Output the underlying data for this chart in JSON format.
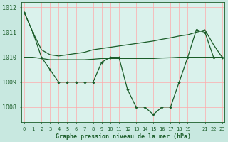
{
  "title": "Graphe pression niveau de la mer (hPa)",
  "bg_color": "#c8e8e0",
  "plot_bg": "#daf2ec",
  "line_color": "#1a5c28",
  "ylim": [
    1007.4,
    1012.2
  ],
  "yticks": [
    1008,
    1009,
    1010,
    1011,
    1012
  ],
  "xlim": [
    -0.3,
    23.3
  ],
  "xticks": [
    0,
    1,
    2,
    3,
    4,
    5,
    6,
    7,
    8,
    9,
    10,
    11,
    12,
    13,
    14,
    15,
    16,
    17,
    18,
    19,
    20,
    21,
    22,
    23
  ],
  "xtick_labels": [
    "0",
    "1",
    "2",
    "3",
    "4",
    "5",
    "6",
    "7",
    "8",
    "9",
    "10",
    "11",
    "12",
    "13",
    "14",
    "15",
    "16",
    "17",
    "18",
    "19",
    "",
    "21",
    "22",
    "23"
  ],
  "s1_x": [
    0,
    1,
    2,
    3,
    4,
    5,
    6,
    7,
    8,
    9,
    10,
    11,
    12,
    13,
    14,
    15,
    16,
    17,
    18,
    19,
    20,
    21,
    22,
    23
  ],
  "s1_y": [
    1011.8,
    1011.0,
    1010.0,
    1009.5,
    1009.0,
    1009.0,
    1009.0,
    1009.0,
    1009.0,
    1009.8,
    1010.0,
    1010.0,
    1008.7,
    1008.0,
    1008.0,
    1007.7,
    1008.0,
    1008.0,
    1009.0,
    1010.0,
    1011.1,
    1011.0,
    1010.0,
    1010.0
  ],
  "s2_x": [
    0,
    1,
    2,
    3,
    4,
    5,
    6,
    7,
    8,
    9,
    10,
    11,
    12,
    13,
    14,
    15,
    16,
    17,
    18,
    19,
    20,
    21,
    22,
    23
  ],
  "s2_y": [
    1010.0,
    1010.0,
    1009.95,
    1009.9,
    1009.9,
    1009.9,
    1009.9,
    1009.9,
    1009.92,
    1009.95,
    1009.95,
    1009.95,
    1009.95,
    1009.95,
    1009.95,
    1009.95,
    1009.97,
    1009.98,
    1010.0,
    1010.0,
    1010.0,
    1010.0,
    1010.0,
    1010.0
  ],
  "s3_x": [
    0,
    1,
    2,
    3,
    4,
    5,
    6,
    7,
    8,
    9,
    10,
    11,
    12,
    13,
    14,
    15,
    16,
    17,
    18,
    19,
    20,
    21,
    22,
    23
  ],
  "s3_y": [
    1011.8,
    1011.0,
    1010.3,
    1010.1,
    1010.05,
    1010.1,
    1010.15,
    1010.2,
    1010.3,
    1010.35,
    1010.4,
    1010.45,
    1010.5,
    1010.55,
    1010.6,
    1010.65,
    1010.72,
    1010.78,
    1010.85,
    1010.9,
    1011.0,
    1011.1,
    1010.5,
    1010.0
  ]
}
